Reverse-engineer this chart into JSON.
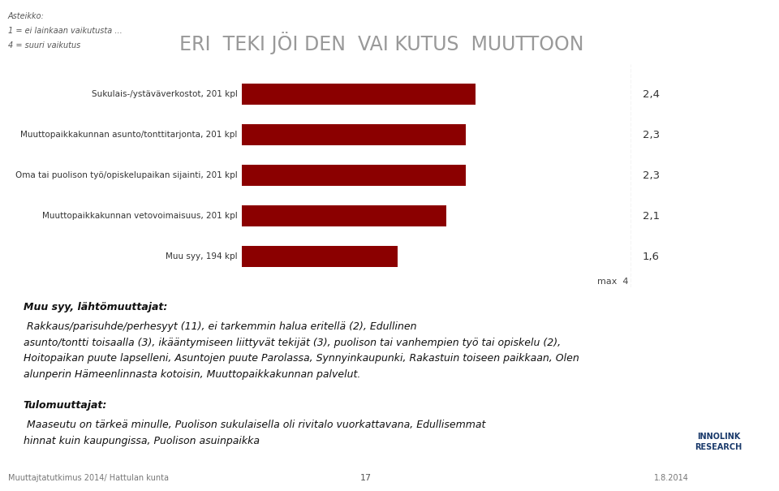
{
  "title": "ERI  TEKI JÖI DEN  VAI KUTUS  MUUTTOON",
  "title_fontsize": 20,
  "title_color": "#999999",
  "scale_text_line1": "Asteikko:",
  "scale_text_line2": "1 = ei lainkaan vaikutusta ...",
  "scale_text_line3": "4 = suuri vaikutus",
  "categories": [
    "Sukulais-/ystäväverkostot, 201 kpl",
    "Muuttopaikkakunnan asunto/tonttitarjonta, 201 kpl",
    "Oma tai puolison työ/opiskelupaikan sijainti, 201 kpl",
    "Muuttopaikkakunnan vetovoimaisuus, 201 kpl",
    "Muu syy, 194 kpl"
  ],
  "values": [
    2.4,
    2.3,
    2.3,
    2.1,
    1.6
  ],
  "value_labels": [
    "2,4",
    "2,3",
    "2,3",
    "2,1",
    "1,6"
  ],
  "bar_color": "#8B0000",
  "xlim": [
    0,
    4
  ],
  "max_label": "max  4",
  "background_color": "#ffffff",
  "body1_bold": "Muu syy, lähtömuuttajat:",
  "body1_normal": " Rakkaus/parisuhde/perhesyyt (11), ei tarkemmin halua eritellä (2), Edullinen\nasunto/tontti toisaalla (3), ikääntymiseen liittyvät tekijät (3), puolison tai vanhempien työ tai opiskelu (2),\nHoitopaikan puute lapselleni, Asuntojen puute Parolassa, Synnyinkaupunki, Rakastuin toiseen paikkaan, Olen\nalunperin Hämeenlinnasta kotoisin, Muuttopaikkakunnan palvelut.",
  "body2_bold": "Tulomuuttajat:",
  "body2_normal": " Maaseutu on tärkeä minulle, Puolison sukulaisella oli rivitalo vuorkattavana, Edullisemmat\nhinnat kuin kaupungissa, Puolison asuinpaikka",
  "footer_left": "Muuttajtatutkimus 2014/ Hattulan kunta",
  "footer_center": "17",
  "footer_right": "1.8.2014"
}
